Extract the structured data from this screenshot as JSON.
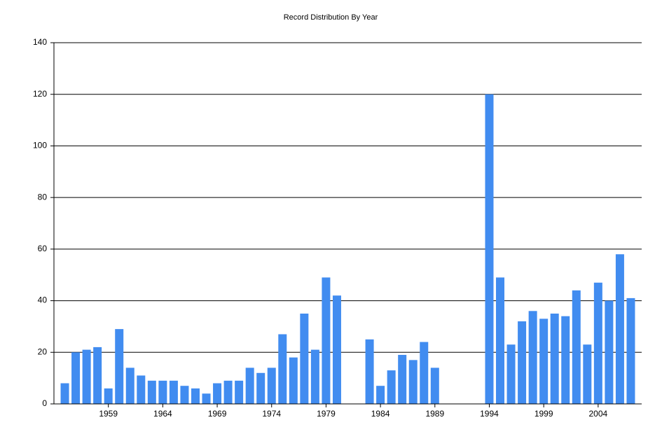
{
  "chart_data": {
    "type": "bar",
    "title": "Record Distribution By Year",
    "categories": [
      null,
      null,
      null,
      null,
      "1959",
      null,
      null,
      null,
      null,
      "1964",
      null,
      null,
      null,
      null,
      "1969",
      null,
      null,
      null,
      null,
      "1974",
      null,
      null,
      null,
      null,
      "1979",
      null,
      null,
      null,
      null,
      "1984",
      null,
      null,
      null,
      null,
      "1989",
      null,
      null,
      null,
      null,
      "1994",
      null,
      null,
      null,
      null,
      "1999",
      null,
      null,
      null,
      null,
      "2004",
      null,
      null,
      null
    ],
    "values": [
      8,
      20,
      21,
      22,
      6,
      29,
      14,
      11,
      9,
      9,
      9,
      7,
      6,
      4,
      8,
      9,
      9,
      14,
      12,
      14,
      27,
      18,
      35,
      21,
      49,
      42,
      null,
      null,
      25,
      7,
      13,
      19,
      17,
      24,
      14,
      null,
      null,
      null,
      null,
      120,
      49,
      23,
      32,
      36,
      33,
      35,
      34,
      44,
      23,
      47,
      40,
      58,
      41
    ],
    "color": "#418cf0",
    "ylim": [
      0,
      140
    ],
    "yticks": [
      0,
      20,
      40,
      60,
      80,
      100,
      120,
      140
    ],
    "grid": true
  }
}
